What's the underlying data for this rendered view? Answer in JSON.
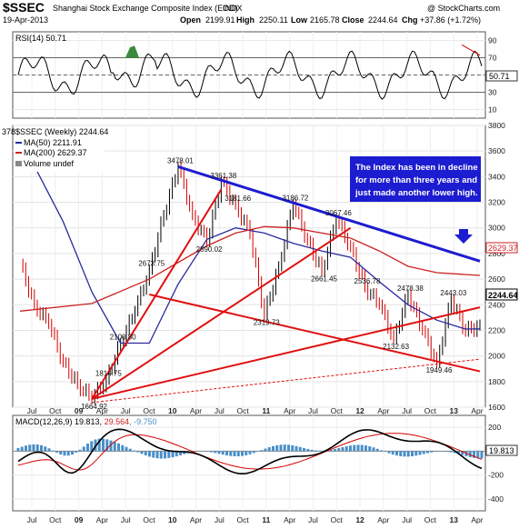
{
  "header": {
    "symbol": "$SSEC",
    "name": "Shanghai Stock Exchange Composite Index (EOD)",
    "exchange": "INDX",
    "date": "19-Apr-2013",
    "watermark": "@ StockCharts.com",
    "open_label": "Open",
    "open": "2199.91",
    "high_label": "High",
    "high": "2250.11",
    "low_label": "Low",
    "low": "2165.78",
    "close_label": "Close",
    "close": "2244.64",
    "chg_label": "Chg",
    "chg": "+37.86 (+1.72%)"
  },
  "colors": {
    "up": "#000000",
    "down": "#d40000",
    "ma50": "#2a2aa0",
    "ma200": "#cc2222",
    "trend_blue": "#1c1cd0",
    "trend_red": "#e01010",
    "rsi_fill": "#3b8a3b",
    "note_bg": "#1c1cd0",
    "macd_hist": "#4a8fc8"
  },
  "rsi_panel": {
    "label": "RSI(14) 50.71",
    "value_tag": "50.71",
    "ticks": [
      "90",
      "70",
      "50",
      "30",
      "10"
    ]
  },
  "price_panel": {
    "legend": {
      "main_tag": "378",
      "main": "$SSEC (Weekly) 2244.64",
      "ma50": "MA(50) 2211.91",
      "ma200": "MA(200) 2629.37",
      "volume": "Volume undef"
    },
    "ticks": [
      "3800",
      "3600",
      "3400",
      "3200",
      "3000",
      "2800",
      "2600",
      "2400",
      "2200",
      "2000",
      "1800",
      "1600"
    ],
    "ma200_tag": "2629.37",
    "close_tag": "2244.64",
    "annotation": "The Index has been in decline for more than three years and just made another lower high.",
    "annotation_lines": [
      "The Index has been in decline",
      "for more than three years and",
      "just made another lower high."
    ]
  },
  "macd_panel": {
    "label": "MACD(12,26,9) 19.813, 29.564, -9.750",
    "label_a": "MACD(12,26,9) 19.813, ",
    "label_b": "29.564",
    "label_c": ", -9.750",
    "value_tag": "19.813",
    "ticks": [
      "200",
      "0",
      "-200",
      "-400"
    ]
  },
  "x_axis_labels": [
    "Jul",
    "Oct",
    "09",
    "Apr",
    "Jul",
    "Oct",
    "10",
    "Apr",
    "Jul",
    "Oct",
    "11",
    "Apr",
    "Jul",
    "Oct",
    "12",
    "Apr",
    "Jul",
    "Oct",
    "13",
    "Apr"
  ],
  "chart_data": {
    "type": "line",
    "title": "Shanghai Stock Exchange Composite Index (EOD)",
    "x_labels": [
      "Jul",
      "Oct",
      "09",
      "Apr",
      "Jul",
      "Oct",
      "10",
      "Apr",
      "Jul",
      "Oct",
      "11",
      "Apr",
      "Jul",
      "Oct",
      "12",
      "Apr",
      "Jul",
      "Oct",
      "13",
      "Apr"
    ],
    "ylim": [
      1600,
      3800
    ],
    "grid": true,
    "series": [
      {
        "name": "$SSEC (Weekly) 2244.64",
        "points": [
          [
            0,
            2720
          ],
          [
            1,
            2400
          ],
          [
            2,
            2250
          ],
          [
            3,
            1950
          ],
          [
            4,
            1780
          ],
          [
            5,
            1664.92
          ],
          [
            6,
            1814.75
          ],
          [
            7,
            2100.8
          ],
          [
            8,
            2350
          ],
          [
            9,
            2673.75
          ],
          [
            10,
            3100
          ],
          [
            11,
            3478.01
          ],
          [
            12,
            3100
          ],
          [
            13,
            2890.02
          ],
          [
            14,
            3361.38
          ],
          [
            15,
            3181.66
          ],
          [
            16,
            2950
          ],
          [
            17,
            2319.73
          ],
          [
            18,
            2700
          ],
          [
            19,
            3186.72
          ],
          [
            20,
            2900
          ],
          [
            21,
            2661.45
          ],
          [
            22,
            3067.46
          ],
          [
            23,
            2850
          ],
          [
            24,
            2536.78
          ],
          [
            25,
            2400
          ],
          [
            26,
            2132.63
          ],
          [
            27,
            2478.38
          ],
          [
            28,
            2200
          ],
          [
            29,
            1949.46
          ],
          [
            30,
            2443.03
          ],
          [
            31,
            2190
          ],
          [
            32,
            2244.64
          ]
        ]
      },
      {
        "name": "MA(50) 2211.91",
        "points": [
          [
            0,
            3700
          ],
          [
            3,
            3050
          ],
          [
            5,
            2500
          ],
          [
            7,
            2100
          ],
          [
            9,
            2100
          ],
          [
            11,
            2560
          ],
          [
            13,
            2910
          ],
          [
            15,
            3000
          ],
          [
            17,
            2960
          ],
          [
            19,
            2880
          ],
          [
            21,
            2820
          ],
          [
            23,
            2770
          ],
          [
            25,
            2580
          ],
          [
            27,
            2400
          ],
          [
            29,
            2280
          ],
          [
            31,
            2210
          ],
          [
            32,
            2211.91
          ]
        ]
      },
      {
        "name": "MA(200) 2629.37",
        "points": [
          [
            0,
            2350
          ],
          [
            5,
            2410
          ],
          [
            9,
            2600
          ],
          [
            13,
            2860
          ],
          [
            15,
            2960
          ],
          [
            17,
            3010
          ],
          [
            19,
            3000
          ],
          [
            21,
            2960
          ],
          [
            23,
            2920
          ],
          [
            25,
            2820
          ],
          [
            27,
            2700
          ],
          [
            29,
            2650
          ],
          [
            32,
            2629.37
          ]
        ]
      }
    ],
    "point_labels": [
      {
        "i": 5,
        "text": "1664.92"
      },
      {
        "i": 6,
        "text": "1814.75"
      },
      {
        "i": 7,
        "text": "2100.80"
      },
      {
        "i": 9,
        "text": "2673.75"
      },
      {
        "i": 11,
        "text": "3478.01"
      },
      {
        "i": 13,
        "text": "2890.02"
      },
      {
        "i": 14,
        "text": "3361.38"
      },
      {
        "i": 15,
        "text": "3181.66"
      },
      {
        "i": 17,
        "text": "2319.73"
      },
      {
        "i": 19,
        "text": "3186.72"
      },
      {
        "i": 21,
        "text": "2661.45"
      },
      {
        "i": 22,
        "text": "3067.46"
      },
      {
        "i": 24,
        "text": "2536.78"
      },
      {
        "i": 26,
        "text": "2132.63"
      },
      {
        "i": 27,
        "text": "2478.38"
      },
      {
        "i": 29,
        "text": "1949.46"
      },
      {
        "i": 30,
        "text": "2443.03"
      }
    ],
    "trendlines": [
      {
        "color": "blue",
        "from": [
          11,
          3478.01
        ],
        "to": [
          32,
          2740
        ]
      },
      {
        "color": "red",
        "from": [
          5,
          1664.92
        ],
        "to": [
          14,
          3300
        ]
      },
      {
        "color": "red",
        "from": [
          5,
          1664.92
        ],
        "to": [
          23,
          3000
        ]
      },
      {
        "color": "red",
        "from": [
          5,
          1664.92
        ],
        "to": [
          32,
          2380
        ]
      },
      {
        "color": "red",
        "from": [
          9,
          2480
        ],
        "to": [
          32,
          1880
        ]
      }
    ],
    "rsi": {
      "ylim": [
        0,
        100
      ],
      "value": 50.71,
      "levels": [
        30,
        50,
        70
      ]
    },
    "macd": {
      "ylim": [
        -500,
        300
      ],
      "macd": 19.813,
      "signal": 29.564,
      "histogram": -9.75
    }
  }
}
